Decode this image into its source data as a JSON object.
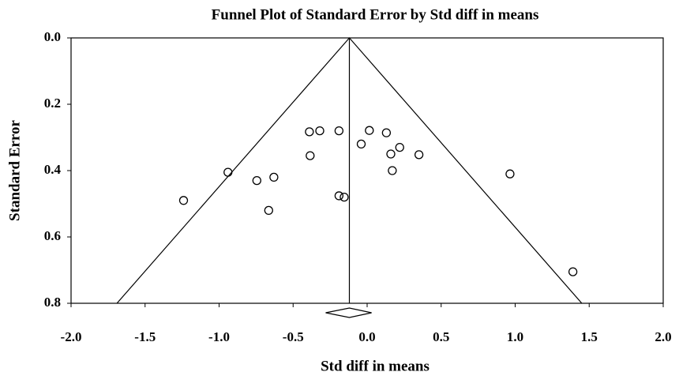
{
  "chart_data": {
    "type": "scatter",
    "title": "Funnel Plot of Standard Error by Std diff in means",
    "x_label": "Std diff in means",
    "y_label": "Standard Error",
    "xlim": [
      -2.0,
      2.0
    ],
    "ylim": [
      0.8,
      0.0
    ],
    "xticks": [
      {
        "value": -2.0,
        "label": "-2.0"
      },
      -1.5,
      {
        "value": -1.0,
        "label": "-1.0"
      },
      -0.5,
      {
        "value": 0,
        "label": "0.0"
      },
      0.5,
      {
        "value": 1.0,
        "label": "1.0"
      },
      1.5,
      {
        "value": 2.0,
        "label": "2.0"
      }
    ],
    "yticks": [
      {
        "value": 0,
        "label": "0.0"
      },
      0.2,
      0.4,
      0.6,
      0.8
    ],
    "color": "#000000",
    "x": [
      -1.24,
      -0.94,
      -0.745,
      -0.63,
      -0.665,
      -0.39,
      -0.32,
      -0.385,
      -0.19,
      -0.19,
      -0.155,
      -0.04,
      0.015,
      0.13,
      0.16,
      0.22,
      0.17,
      0.35,
      0.965,
      1.39
    ],
    "values": [
      0.49,
      0.405,
      0.43,
      0.42,
      0.52,
      0.283,
      0.28,
      0.355,
      0.28,
      0.476,
      0.48,
      0.32,
      0.279,
      0.286,
      0.35,
      0.33,
      0.4,
      0.352,
      0.41,
      0.705
    ],
    "summary": {
      "estimate": -0.12,
      "ci": [
        -0.28,
        0.03
      ]
    },
    "funnel": {
      "x": [
        -1.69,
        -0.12,
        1.45
      ],
      "y": [
        0.8,
        0.0,
        0.8
      ]
    }
  }
}
